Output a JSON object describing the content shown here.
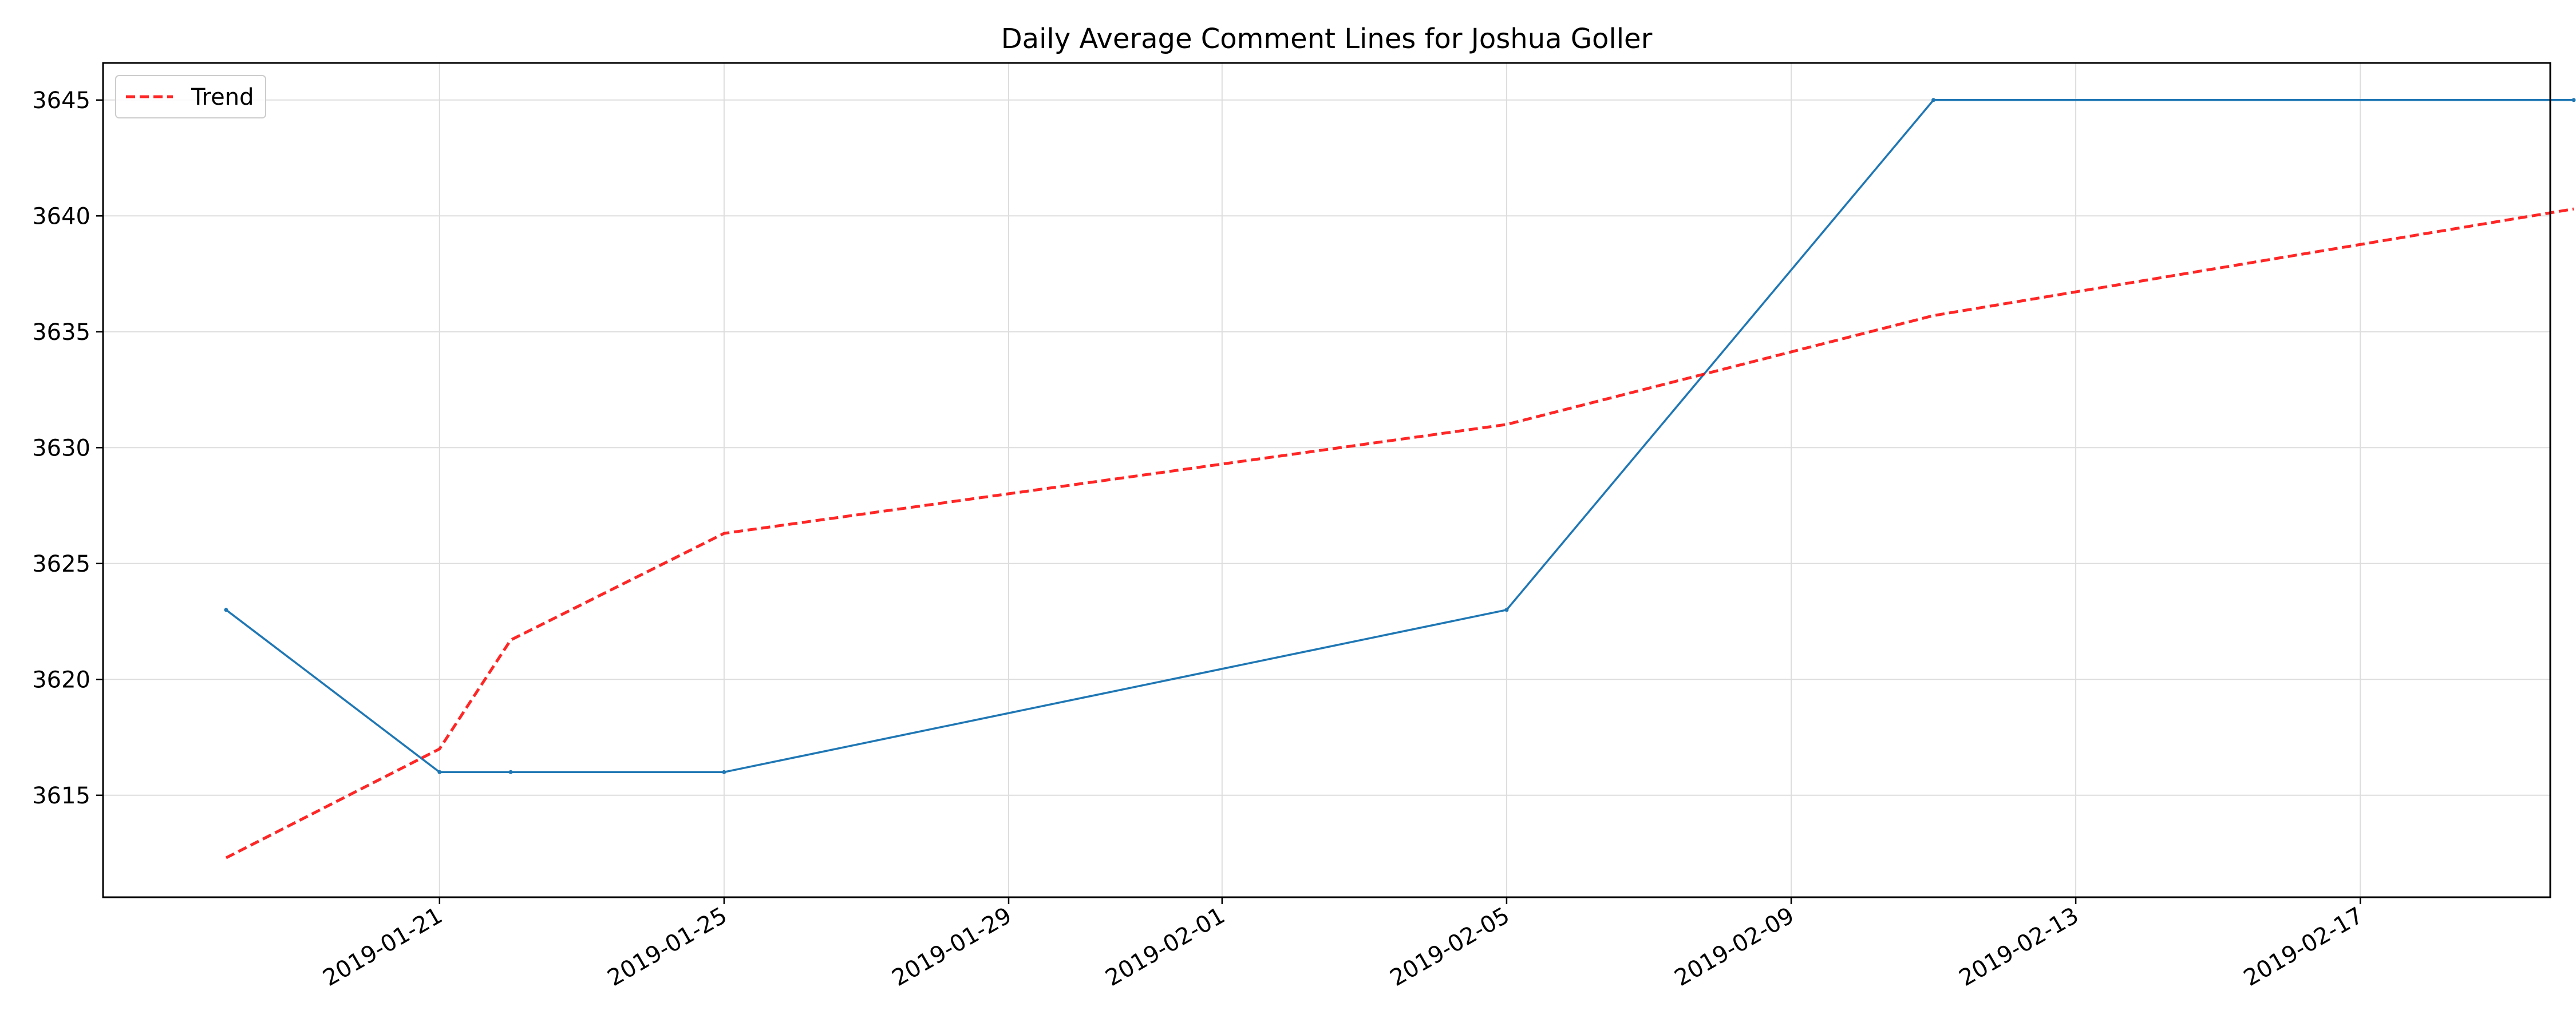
{
  "chart_data": {
    "type": "line",
    "title": "Daily Average Comment Lines for Joshua Goller",
    "xlabel": "",
    "ylabel": "",
    "x_ticks": [
      "2019-01-21",
      "2019-01-25",
      "2019-01-29",
      "2019-02-01",
      "2019-02-05",
      "2019-02-09",
      "2019-02-13",
      "2019-02-17"
    ],
    "y_ticks": [
      3615,
      3620,
      3625,
      3630,
      3635,
      3640,
      3645
    ],
    "xlim": [
      "2019-01-16",
      "2019-02-20"
    ],
    "ylim": [
      3610.6,
      3646.6
    ],
    "grid": true,
    "legend": {
      "position": "top-left",
      "entries": [
        "Trend"
      ]
    },
    "series": [
      {
        "color": "#1f77b4",
        "style": "solid",
        "points": [
          {
            "x": "2019-01-18",
            "y": 3623
          },
          {
            "x": "2019-01-21",
            "y": 3616
          },
          {
            "x": "2019-01-22",
            "y": 3616
          },
          {
            "x": "2019-01-25",
            "y": 3616
          },
          {
            "x": "2019-02-05",
            "y": 3623
          },
          {
            "x": "2019-02-11",
            "y": 3645
          },
          {
            "x": "2019-02-20",
            "y": 3645
          }
        ]
      },
      {
        "name": "Trend",
        "color": "#ff0000",
        "style": "dashed",
        "points": [
          {
            "x": "2019-01-18",
            "y": 3612.3
          },
          {
            "x": "2019-01-21",
            "y": 3617
          },
          {
            "x": "2019-01-22",
            "y": 3621.7
          },
          {
            "x": "2019-01-25",
            "y": 3626.3
          },
          {
            "x": "2019-02-05",
            "y": 3631
          },
          {
            "x": "2019-02-11",
            "y": 3635.7
          },
          {
            "x": "2019-02-20",
            "y": 3640.3
          }
        ]
      }
    ]
  }
}
